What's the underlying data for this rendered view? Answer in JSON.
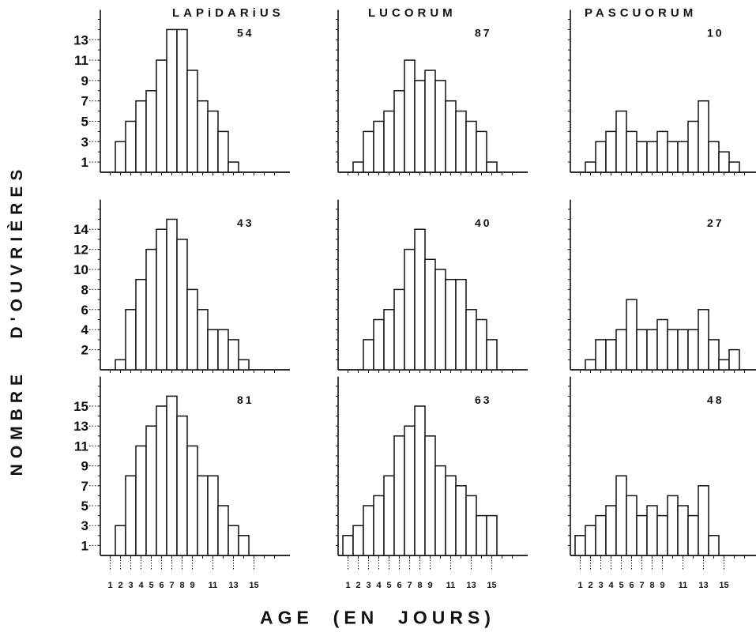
{
  "figure": {
    "y_axis_title": "NOMBRE   D'OUVRIÈRES",
    "x_axis_title": "AGE  (EN  JOURS)",
    "column_titles": [
      "LAPiDARiUS",
      "LUCORUM",
      "PASCUORUM"
    ]
  },
  "chart_data": [
    {
      "type": "bar",
      "column": "LAPiDARiUS",
      "row": 1,
      "count_label": "54",
      "x": [
        2,
        3,
        4,
        5,
        6,
        7,
        8,
        9,
        10,
        11,
        12,
        13
      ],
      "values": [
        3,
        5,
        7,
        8,
        11,
        14,
        14,
        10,
        7,
        6,
        4,
        1
      ],
      "yticks": [
        1,
        3,
        5,
        7,
        9,
        11,
        13
      ],
      "ylim": [
        0,
        15
      ],
      "show_xticklabels": false
    },
    {
      "type": "bar",
      "column": "LUCORUM",
      "row": 1,
      "count_label": "87",
      "x": [
        2,
        3,
        4,
        5,
        6,
        7,
        8,
        9,
        10,
        11,
        12,
        13,
        14,
        15
      ],
      "values": [
        1,
        4,
        5,
        6,
        8,
        11,
        9,
        10,
        9,
        7,
        6,
        5,
        4,
        1
      ],
      "yticks": [],
      "ylim": [
        0,
        15
      ],
      "show_xticklabels": false
    },
    {
      "type": "bar",
      "column": "PASCUORUM",
      "row": 1,
      "count_label": "10",
      "x": [
        2,
        3,
        4,
        5,
        6,
        7,
        8,
        9,
        10,
        11,
        12,
        13,
        14,
        15,
        16
      ],
      "values": [
        1,
        3,
        4,
        6,
        4,
        3,
        3,
        4,
        3,
        3,
        5,
        7,
        3,
        2,
        1
      ],
      "yticks": [],
      "ylim": [
        0,
        15
      ],
      "show_xticklabels": false
    },
    {
      "type": "bar",
      "column": "LAPiDARiUS",
      "row": 2,
      "count_label": "43",
      "x": [
        2,
        3,
        4,
        5,
        6,
        7,
        8,
        9,
        10,
        11,
        12,
        13,
        14
      ],
      "values": [
        1,
        6,
        9,
        12,
        14,
        15,
        13,
        8,
        6,
        4,
        4,
        3,
        1
      ],
      "yticks": [
        2,
        4,
        6,
        8,
        10,
        12,
        14
      ],
      "ylim": [
        0,
        16
      ],
      "show_xticklabels": false
    },
    {
      "type": "bar",
      "column": "LUCORUM",
      "row": 2,
      "count_label": "40",
      "x": [
        3,
        4,
        5,
        6,
        7,
        8,
        9,
        10,
        11,
        12,
        13,
        14,
        15
      ],
      "values": [
        3,
        5,
        6,
        8,
        12,
        14,
        11,
        10,
        9,
        9,
        6,
        5,
        3
      ],
      "yticks": [],
      "ylim": [
        0,
        16
      ],
      "show_xticklabels": false
    },
    {
      "type": "bar",
      "column": "PASCUORUM",
      "row": 2,
      "count_label": "27",
      "x": [
        2,
        3,
        4,
        5,
        6,
        7,
        8,
        9,
        10,
        11,
        12,
        13,
        14,
        15,
        16
      ],
      "values": [
        1,
        3,
        3,
        4,
        7,
        4,
        4,
        5,
        4,
        4,
        4,
        6,
        3,
        1,
        2
      ],
      "yticks": [],
      "ylim": [
        0,
        16
      ],
      "show_xticklabels": false
    },
    {
      "type": "bar",
      "column": "LAPiDARiUS",
      "row": 3,
      "count_label": "81",
      "x": [
        2,
        3,
        4,
        5,
        6,
        7,
        8,
        9,
        10,
        11,
        12,
        13,
        14
      ],
      "values": [
        3,
        8,
        11,
        13,
        15,
        16,
        14,
        11,
        8,
        8,
        5,
        3,
        2
      ],
      "yticks": [
        1,
        3,
        5,
        7,
        9,
        11,
        13,
        15
      ],
      "ylim": [
        0,
        17
      ],
      "xticks": [
        1,
        2,
        3,
        4,
        5,
        6,
        7,
        8,
        9,
        10,
        11,
        12,
        13,
        14,
        15,
        16,
        17
      ],
      "xticklabels": [
        "1",
        "2",
        "3",
        "4",
        "5",
        "6",
        "7",
        "8",
        "9",
        "",
        "11",
        "",
        "13",
        "",
        "15",
        "",
        ""
      ],
      "show_xticklabels": true
    },
    {
      "type": "bar",
      "column": "LUCORUM",
      "row": 3,
      "count_label": "63",
      "x": [
        1,
        2,
        3,
        4,
        5,
        6,
        7,
        8,
        9,
        10,
        11,
        12,
        13,
        14,
        15
      ],
      "values": [
        2,
        3,
        5,
        6,
        8,
        12,
        13,
        15,
        12,
        9,
        8,
        7,
        6,
        4,
        4
      ],
      "yticks": [],
      "ylim": [
        0,
        17
      ],
      "xticks": [
        1,
        2,
        3,
        4,
        5,
        6,
        7,
        8,
        9,
        10,
        11,
        12,
        13,
        14,
        15,
        16,
        17
      ],
      "xticklabels": [
        "1",
        "2",
        "3",
        "4",
        "5",
        "6",
        "7",
        "8",
        "9",
        "",
        "11",
        "",
        "13",
        "",
        "15",
        "",
        ""
      ],
      "show_xticklabels": true
    },
    {
      "type": "bar",
      "column": "PASCUORUM",
      "row": 3,
      "count_label": "48",
      "x": [
        1,
        2,
        3,
        4,
        5,
        6,
        7,
        8,
        9,
        10,
        11,
        12,
        13,
        14,
        15
      ],
      "values": [
        2,
        3,
        4,
        5,
        8,
        6,
        4,
        5,
        4,
        6,
        5,
        4,
        7,
        2,
        0
      ],
      "yticks": [],
      "ylim": [
        0,
        17
      ],
      "xticks": [
        1,
        2,
        3,
        4,
        5,
        6,
        7,
        8,
        9,
        10,
        11,
        12,
        13,
        14,
        15,
        16,
        17
      ],
      "xticklabels": [
        "1",
        "2",
        "3",
        "4",
        "5",
        "6",
        "7",
        "8",
        "9",
        "",
        "11",
        "",
        "13",
        "",
        "15",
        "",
        ""
      ],
      "show_xticklabels": true
    }
  ]
}
